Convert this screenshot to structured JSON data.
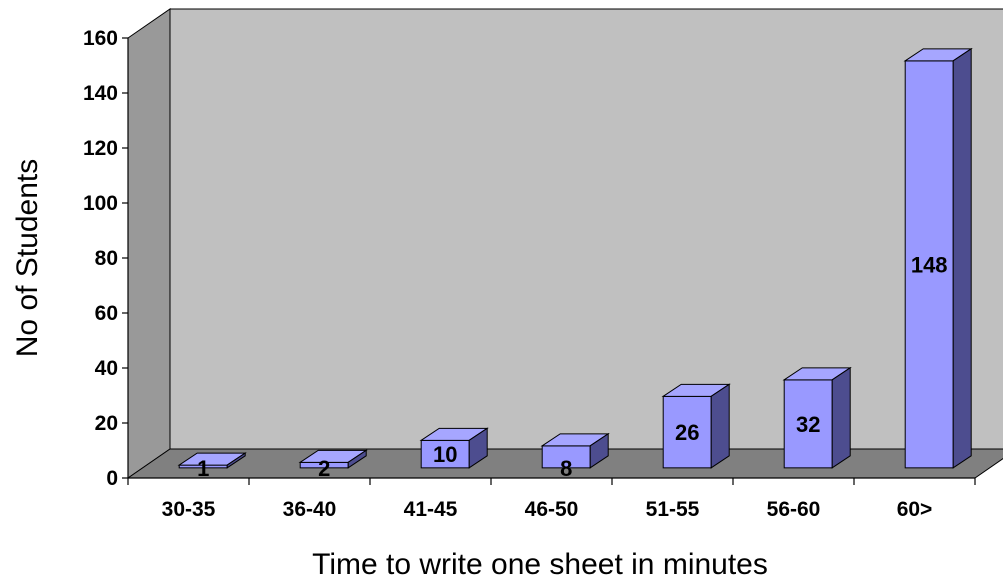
{
  "chart_data": {
    "type": "bar",
    "title": "",
    "xlabel": "Time to write one sheet in minutes",
    "ylabel": "No of Students",
    "categories": [
      "30-35",
      "36-40",
      "41-45",
      "46-50",
      "51-55",
      "56-60",
      "60>"
    ],
    "values": [
      1,
      2,
      10,
      8,
      26,
      32,
      148
    ],
    "data_labels": [
      "1",
      "2",
      "10",
      "8",
      "26",
      "32",
      "148"
    ],
    "ylim": [
      0,
      160
    ],
    "yticks": [
      "0",
      "20",
      "40",
      "60",
      "80",
      "100",
      "120",
      "140",
      "160"
    ],
    "grid": false,
    "legend": "none",
    "style": "3d-column",
    "colors": {
      "bar_front": "#9999ff",
      "bar_top": "#a6a6ff",
      "bar_side": "#4d4d8f",
      "back_wall": "#c0c0c0",
      "floor": "#808080",
      "left_wall": "#999999"
    }
  }
}
